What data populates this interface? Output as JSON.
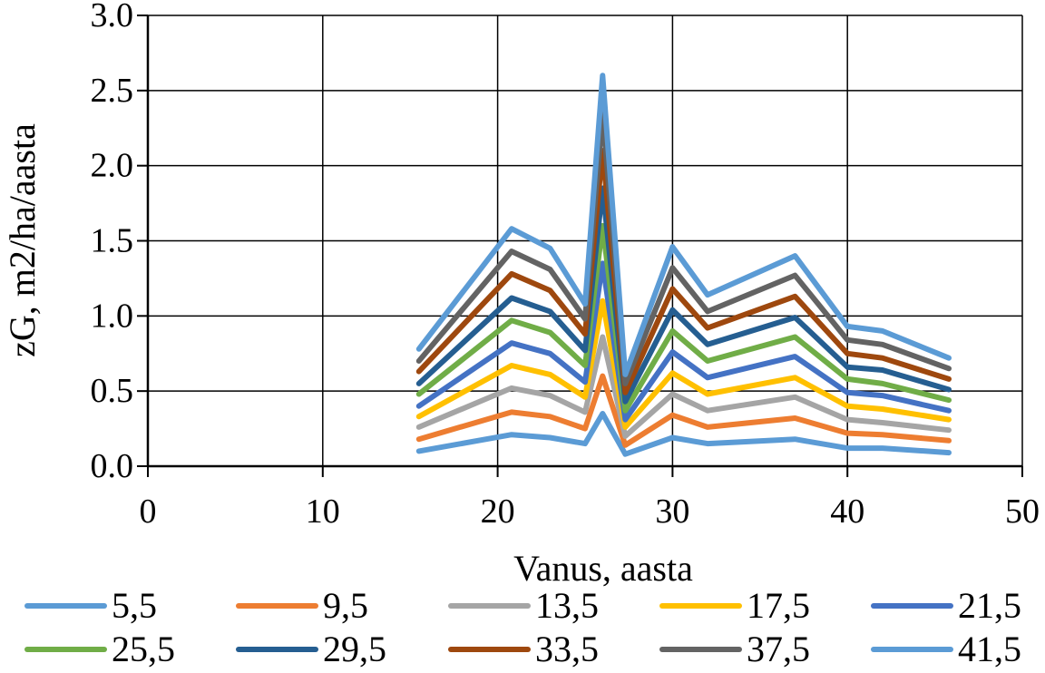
{
  "chart_data": {
    "type": "line",
    "title": "",
    "xlabel": "Vanus, aasta",
    "ylabel": "zG, m2/ha/aasta",
    "xlim": [
      0,
      50
    ],
    "ylim": [
      0,
      3.0
    ],
    "xticks": [
      "0",
      "10",
      "20",
      "30",
      "40",
      "50"
    ],
    "yticks": [
      "0.0",
      "0.5",
      "1.0",
      "1.5",
      "2.0",
      "2.5",
      "3.0"
    ],
    "grid": true,
    "legend_position": "bottom",
    "x": [
      15.5,
      20.8,
      23.0,
      25.0,
      26.0,
      27.3,
      30.0,
      32.0,
      37.0,
      40.0,
      42.0,
      45.8
    ],
    "series": [
      {
        "name": "5,5",
        "color": "#5B9BD5",
        "values": [
          0.1,
          0.21,
          0.19,
          0.15,
          0.35,
          0.08,
          0.19,
          0.15,
          0.18,
          0.12,
          0.12,
          0.09
        ]
      },
      {
        "name": "9,5",
        "color": "#ED7D31",
        "values": [
          0.18,
          0.36,
          0.33,
          0.25,
          0.6,
          0.14,
          0.34,
          0.26,
          0.32,
          0.22,
          0.21,
          0.17
        ]
      },
      {
        "name": "13,5",
        "color": "#A5A5A5",
        "values": [
          0.26,
          0.52,
          0.47,
          0.36,
          0.86,
          0.2,
          0.48,
          0.37,
          0.46,
          0.31,
          0.29,
          0.24
        ]
      },
      {
        "name": "17,5",
        "color": "#FFC000",
        "values": [
          0.33,
          0.67,
          0.61,
          0.46,
          1.1,
          0.26,
          0.62,
          0.48,
          0.59,
          0.4,
          0.38,
          0.31
        ]
      },
      {
        "name": "21,5",
        "color": "#4472C4",
        "values": [
          0.4,
          0.82,
          0.75,
          0.56,
          1.35,
          0.31,
          0.76,
          0.59,
          0.73,
          0.49,
          0.47,
          0.37
        ]
      },
      {
        "name": "25,5",
        "color": "#70AD47",
        "values": [
          0.48,
          0.97,
          0.89,
          0.67,
          1.6,
          0.37,
          0.9,
          0.7,
          0.86,
          0.58,
          0.55,
          0.44
        ]
      },
      {
        "name": "29,5",
        "color": "#255E91",
        "values": [
          0.55,
          1.12,
          1.03,
          0.77,
          1.85,
          0.43,
          1.04,
          0.81,
          0.99,
          0.66,
          0.64,
          0.51
        ]
      },
      {
        "name": "33,5",
        "color": "#9E480E",
        "values": [
          0.63,
          1.28,
          1.17,
          0.88,
          2.1,
          0.49,
          1.18,
          0.92,
          1.13,
          0.75,
          0.72,
          0.58
        ]
      },
      {
        "name": "37,5",
        "color": "#636363",
        "values": [
          0.7,
          1.43,
          1.31,
          0.98,
          2.35,
          0.55,
          1.32,
          1.03,
          1.27,
          0.84,
          0.81,
          0.65
        ]
      },
      {
        "name": "41,5",
        "color": "#5B9BD5",
        "values": [
          0.78,
          1.58,
          1.45,
          1.08,
          2.6,
          0.61,
          1.46,
          1.14,
          1.4,
          0.93,
          0.9,
          0.72
        ]
      }
    ]
  }
}
